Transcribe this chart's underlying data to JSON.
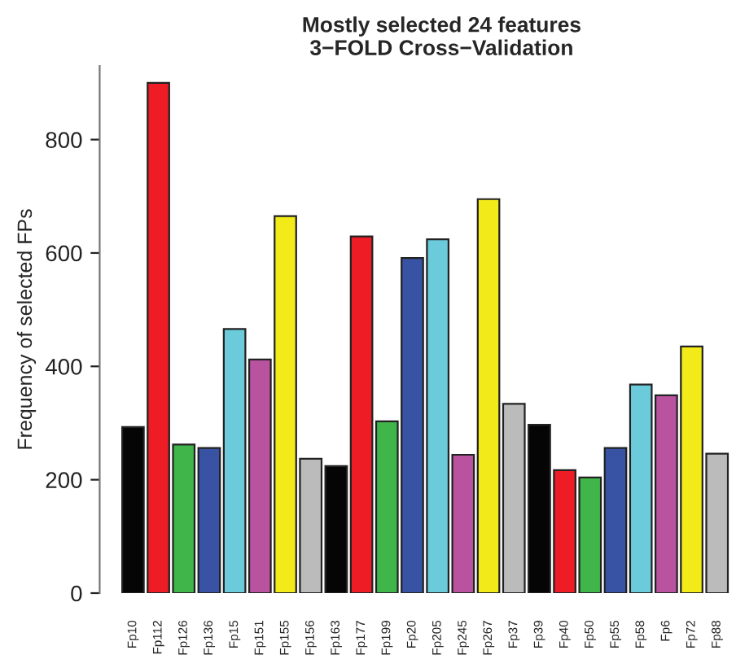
{
  "chart_data": {
    "type": "bar",
    "title": "Mostly selected 24 features",
    "subtitle": "3−FOLD Cross−Validation",
    "ylabel": "Frequency of selected FPs",
    "categories": [
      "Fp10",
      "Fp112",
      "Fp126",
      "Fp136",
      "Fp15",
      "Fp151",
      "Fp155",
      "Fp156",
      "Fp163",
      "Fp177",
      "Fp199",
      "Fp20",
      "Fp205",
      "Fp245",
      "Fp267",
      "Fp37",
      "Fp39",
      "Fp40",
      "Fp50",
      "Fp55",
      "Fp58",
      "Fp6",
      "Fp72",
      "Fp88"
    ],
    "values": [
      293,
      900,
      262,
      256,
      466,
      412,
      665,
      237,
      224,
      629,
      303,
      591,
      624,
      244,
      695,
      334,
      297,
      217,
      204,
      256,
      368,
      349,
      435,
      246
    ],
    "colors": [
      "#050505",
      "#ee1c25",
      "#3fb54a",
      "#3953a4",
      "#6bcbdb",
      "#b9529f",
      "#f2eb19",
      "#bbbbbb",
      "#050505",
      "#ee1c25",
      "#3fb54a",
      "#3953a4",
      "#6bcbdb",
      "#b9529f",
      "#f2eb19",
      "#bbbbbb",
      "#050505",
      "#ee1c25",
      "#3fb54a",
      "#3953a4",
      "#6bcbdb",
      "#b9529f",
      "#f2eb19",
      "#bbbbbb"
    ],
    "ylim": [
      0,
      930
    ],
    "yticks": [
      0,
      200,
      400,
      600,
      800
    ],
    "grid": false,
    "legend": false
  }
}
